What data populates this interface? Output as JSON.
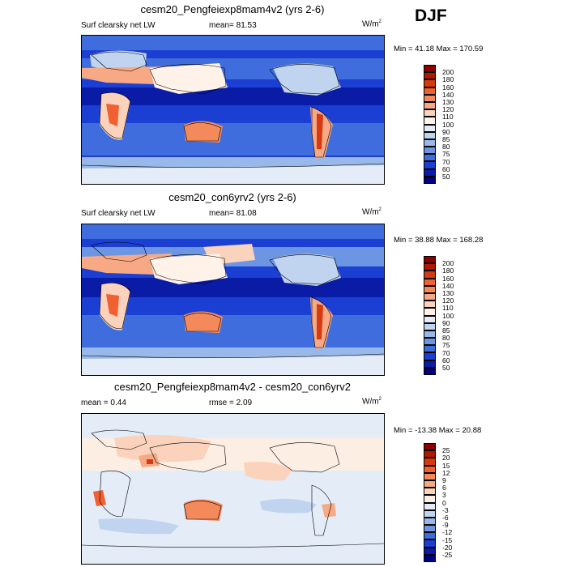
{
  "season": "DJF",
  "panels": [
    {
      "title": "cesm20_Pengfeiexp8mam4v2 (yrs 2-6)",
      "left_label": "Surf clearsky net LW",
      "center_label": "mean=  81.53",
      "units": "W/m",
      "units_exp": "2",
      "minmax": "Min =  41.18 Max = 170.59",
      "colorbar": {
        "levels": [
          "200",
          "180",
          "160",
          "140",
          "130",
          "120",
          "110",
          "100",
          "90",
          "85",
          "80",
          "75",
          "70",
          "60",
          "50"
        ],
        "colors": [
          "#8b0000",
          "#b01800",
          "#d63a10",
          "#f06030",
          "#f48a5c",
          "#f7a985",
          "#fbd2bc",
          "#fff2e8",
          "#e4ecf8",
          "#c0d4f0",
          "#99b8ea",
          "#6c95e4",
          "#3f6ddd",
          "#1b3fd2",
          "#0a1ba6",
          "#000080"
        ]
      }
    },
    {
      "title": "cesm20_con6yrv2 (yrs 2-6)",
      "left_label": "Surf clearsky net LW",
      "center_label": "mean=  81.08",
      "units": "W/m",
      "units_exp": "2",
      "minmax": "Min =  38.88 Max = 168.28",
      "colorbar": {
        "levels": [
          "200",
          "180",
          "160",
          "140",
          "130",
          "120",
          "110",
          "100",
          "90",
          "85",
          "80",
          "75",
          "70",
          "60",
          "50"
        ],
        "colors": [
          "#8b0000",
          "#b01800",
          "#d63a10",
          "#f06030",
          "#f48a5c",
          "#f7a985",
          "#fbd2bc",
          "#fff2e8",
          "#e4ecf8",
          "#c0d4f0",
          "#99b8ea",
          "#6c95e4",
          "#3f6ddd",
          "#1b3fd2",
          "#0a1ba6",
          "#000080"
        ]
      }
    },
    {
      "title": "cesm20_Pengfeiexp8mam4v2 - cesm20_con6yrv2",
      "left_label": "mean =   0.44",
      "center_label": "rmse =   2.09",
      "units": "W/m",
      "units_exp": "2",
      "minmax": "Min = -13.38 Max =  20.88",
      "colorbar": {
        "levels": [
          "25",
          "20",
          "15",
          "12",
          "9",
          "6",
          "3",
          "0",
          "-3",
          "-6",
          "-9",
          "-12",
          "-15",
          "-20",
          "-25"
        ],
        "colors": [
          "#8b0000",
          "#b01800",
          "#d63a10",
          "#f06030",
          "#f48a5c",
          "#f7a985",
          "#fbd2bc",
          "#fdeee4",
          "#e4ecf8",
          "#c0d4f0",
          "#99b8ea",
          "#6c95e4",
          "#3f6ddd",
          "#1b3fd2",
          "#0a1ba6",
          "#000080"
        ]
      }
    }
  ]
}
